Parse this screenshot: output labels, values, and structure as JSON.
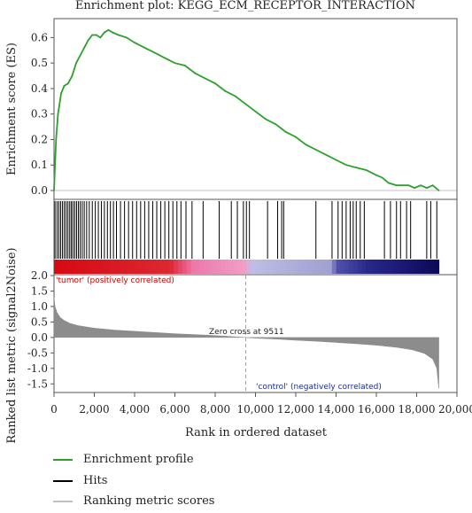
{
  "chart_data": {
    "type": "line",
    "title": "Enrichment plot: KEGG_ECM_RECEPTOR_INTERACTION",
    "xlabel": "Rank in ordered dataset",
    "xlim": [
      0,
      20000
    ],
    "x_ticks": [
      "0",
      "2,000",
      "4,000",
      "6,000",
      "8,000",
      "10,000",
      "12,000",
      "14,000",
      "16,000",
      "18,000",
      "20,000"
    ],
    "panels": {
      "enrichment": {
        "ylabel": "Enrichment score (ES)",
        "ylim": [
          0,
          0.65
        ],
        "y_ticks": [
          "0.0",
          "0.1",
          "0.2",
          "0.3",
          "0.4",
          "0.5",
          "0.6"
        ],
        "series": [
          {
            "name": "Enrichment profile",
            "color": "#2ca02c",
            "x": [
              0,
              100,
              200,
              350,
              500,
              700,
              900,
              1100,
              1300,
              1500,
              1700,
              1900,
              2100,
              2300,
              2500,
              2700,
              2900,
              3200,
              3600,
              4000,
              4500,
              5000,
              5500,
              6000,
              6500,
              7000,
              7500,
              8000,
              8500,
              9000,
              9500,
              10000,
              10500,
              11000,
              11500,
              12000,
              12500,
              13000,
              13500,
              14000,
              14500,
              15000,
              15500,
              16000,
              16300,
              16600,
              17000,
              17300,
              17600,
              17900,
              18200,
              18500,
              18800,
              19100
            ],
            "y": [
              0.0,
              0.2,
              0.3,
              0.38,
              0.41,
              0.42,
              0.45,
              0.5,
              0.53,
              0.56,
              0.59,
              0.61,
              0.61,
              0.6,
              0.62,
              0.63,
              0.62,
              0.61,
              0.6,
              0.58,
              0.56,
              0.54,
              0.52,
              0.5,
              0.49,
              0.46,
              0.44,
              0.42,
              0.39,
              0.37,
              0.34,
              0.31,
              0.28,
              0.26,
              0.23,
              0.21,
              0.18,
              0.16,
              0.14,
              0.12,
              0.1,
              0.09,
              0.08,
              0.06,
              0.05,
              0.03,
              0.02,
              0.02,
              0.02,
              0.01,
              0.02,
              0.01,
              0.02,
              0.0
            ]
          }
        ]
      },
      "hits": {
        "name": "Hits",
        "positions": [
          50,
          150,
          240,
          330,
          420,
          510,
          600,
          690,
          780,
          860,
          940,
          1030,
          1120,
          1210,
          1300,
          1400,
          1500,
          1620,
          1750,
          1900,
          2050,
          2200,
          2350,
          2500,
          2650,
          2800,
          2950,
          3100,
          3300,
          3500,
          3700,
          3900,
          4100,
          4300,
          4500,
          4700,
          4900,
          5100,
          5300,
          5500,
          5700,
          5900,
          6100,
          6300,
          6550,
          6850,
          7400,
          8200,
          8800,
          9100,
          9400,
          9550,
          9700,
          10600,
          11100,
          11300,
          11400,
          13000,
          13800,
          14100,
          14300,
          14500,
          14700,
          14850,
          15000,
          15200,
          15400,
          16400,
          16700,
          17000,
          17200,
          17500,
          17700,
          18500,
          18700,
          19000
        ]
      },
      "ranked_metric": {
        "name": "Ranking metric scores",
        "ylabel": "Ranked list metric (signal2Noise)",
        "ylim": [
          -1.75,
          2.0
        ],
        "y_ticks": [
          "2.0",
          "1.5",
          "1.0",
          "0.5",
          "0.0",
          "-0.5",
          "-1.0",
          "-1.5"
        ],
        "x": [
          0,
          50,
          150,
          300,
          500,
          800,
          1200,
          2000,
          3000,
          4000,
          5000,
          6000,
          7000,
          8000,
          9000,
          9511,
          10000,
          11000,
          12000,
          13000,
          14000,
          15000,
          16000,
          17000,
          17800,
          18400,
          18800,
          19000,
          19100
        ],
        "y": [
          1.3,
          1.0,
          0.8,
          0.65,
          0.55,
          0.45,
          0.38,
          0.3,
          0.24,
          0.2,
          0.16,
          0.12,
          0.09,
          0.06,
          0.02,
          0.0,
          -0.02,
          -0.05,
          -0.09,
          -0.12,
          -0.16,
          -0.2,
          -0.25,
          -0.32,
          -0.4,
          -0.52,
          -0.7,
          -1.0,
          -1.65
        ],
        "zero_cross_label": "Zero cross at 9511",
        "positive_label": "'tumor' (positively correlated)",
        "negative_label": "'control' (negatively correlated)"
      }
    },
    "legend": {
      "placement": "bottom-left",
      "items": [
        {
          "label": "Enrichment profile",
          "color": "#2ca02c"
        },
        {
          "label": "Hits",
          "color": "#000000"
        },
        {
          "label": "Ranking metric scores",
          "color": "#c0c0c0"
        }
      ]
    }
  }
}
